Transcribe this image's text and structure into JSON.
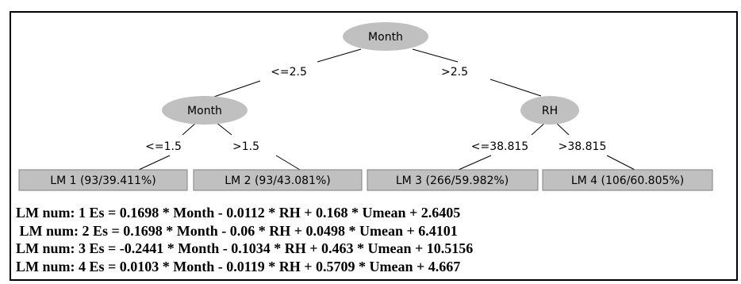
{
  "tree": {
    "root": {
      "label": "Month",
      "branches": [
        {
          "edge_label": "<=2.5",
          "node": {
            "label": "Month",
            "branches": [
              {
                "edge_label": "<=1.5",
                "leaf": "LM 1 (93/39.411%)"
              },
              {
                "edge_label": ">1.5",
                "leaf": "LM 2 (93/43.081%)"
              }
            ]
          }
        },
        {
          "edge_label": ">2.5",
          "node": {
            "label": "RH",
            "branches": [
              {
                "edge_label": "<=38.815",
                "leaf": "LM 3 (266/59.982%)"
              },
              {
                "edge_label": ">38.815",
                "leaf": "LM 4 (106/60.805%)"
              }
            ]
          }
        }
      ]
    }
  },
  "equations": [
    "LM num: 1 Es = 0.1698 * Month - 0.0112 * RH + 0.168 * Umean + 2.6405",
    " LM num: 2 Es = 0.1698 * Month - 0.06 * RH + 0.0498 * Umean + 6.4101",
    "LM num: 3 Es = -0.2441 * Month - 0.1034 * RH + 0.463 * Umean + 10.5156",
    "LM num: 4 Es = 0.0103 * Month - 0.0119 * RH + 0.5709 * Umean + 4.667"
  ],
  "colors": {
    "node_fill": "#c0c0c0",
    "leaf_fill": "#c0c0c0",
    "edge": "#000000"
  }
}
